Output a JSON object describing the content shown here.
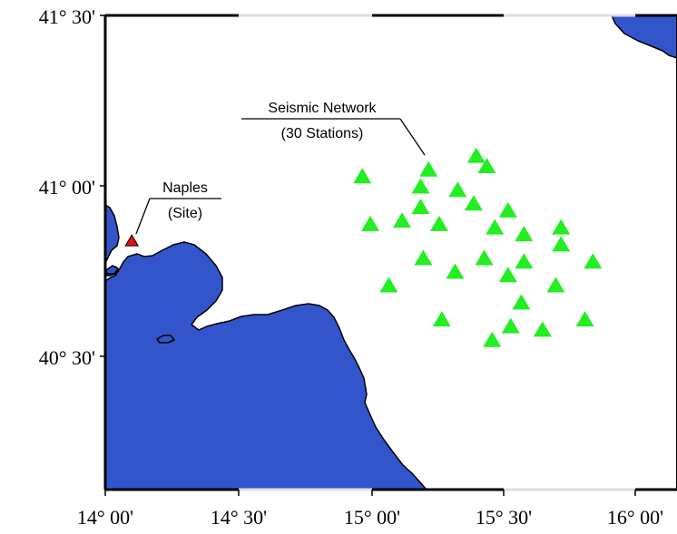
{
  "map": {
    "colors": {
      "land": "#3355cc",
      "sea": "#ffffff",
      "station": "#22ee22",
      "site": "#dd1111",
      "frame": "#000000"
    },
    "lat_labels": [
      "41° 30'",
      "41° 00'",
      "40° 30'"
    ],
    "lon_labels": [
      "14° 00'",
      "14° 30'",
      "15° 00'",
      "15° 30'",
      "16° 00'"
    ],
    "site": {
      "name": "Naples",
      "sub": "(Site)",
      "lon": 14.1,
      "lat": 40.84
    },
    "network": {
      "name": "Seismic Network",
      "sub": "(30 Stations)",
      "stations": [
        {
          "lon": 15.22,
          "lat": 41.05
        },
        {
          "lon": 15.4,
          "lat": 41.09
        },
        {
          "lon": 15.44,
          "lat": 41.06
        },
        {
          "lon": 14.97,
          "lat": 41.03
        },
        {
          "lon": 15.19,
          "lat": 41.0
        },
        {
          "lon": 15.33,
          "lat": 40.99
        },
        {
          "lon": 15.19,
          "lat": 40.94
        },
        {
          "lon": 15.39,
          "lat": 40.95
        },
        {
          "lon": 15.52,
          "lat": 40.93
        },
        {
          "lon": 15.12,
          "lat": 40.9
        },
        {
          "lon": 15.26,
          "lat": 40.89
        },
        {
          "lon": 15.0,
          "lat": 40.89
        },
        {
          "lon": 15.47,
          "lat": 40.88
        },
        {
          "lon": 15.58,
          "lat": 40.86
        },
        {
          "lon": 15.72,
          "lat": 40.88
        },
        {
          "lon": 15.72,
          "lat": 40.83
        },
        {
          "lon": 15.2,
          "lat": 40.79
        },
        {
          "lon": 15.43,
          "lat": 40.79
        },
        {
          "lon": 15.58,
          "lat": 40.78
        },
        {
          "lon": 15.84,
          "lat": 40.78
        },
        {
          "lon": 15.32,
          "lat": 40.75
        },
        {
          "lon": 15.52,
          "lat": 40.74
        },
        {
          "lon": 15.07,
          "lat": 40.71
        },
        {
          "lon": 15.7,
          "lat": 40.71
        },
        {
          "lon": 15.57,
          "lat": 40.66
        },
        {
          "lon": 15.27,
          "lat": 40.61
        },
        {
          "lon": 15.81,
          "lat": 40.61
        },
        {
          "lon": 15.53,
          "lat": 40.59
        },
        {
          "lon": 15.65,
          "lat": 40.58
        },
        {
          "lon": 15.46,
          "lat": 40.55
        }
      ]
    }
  }
}
